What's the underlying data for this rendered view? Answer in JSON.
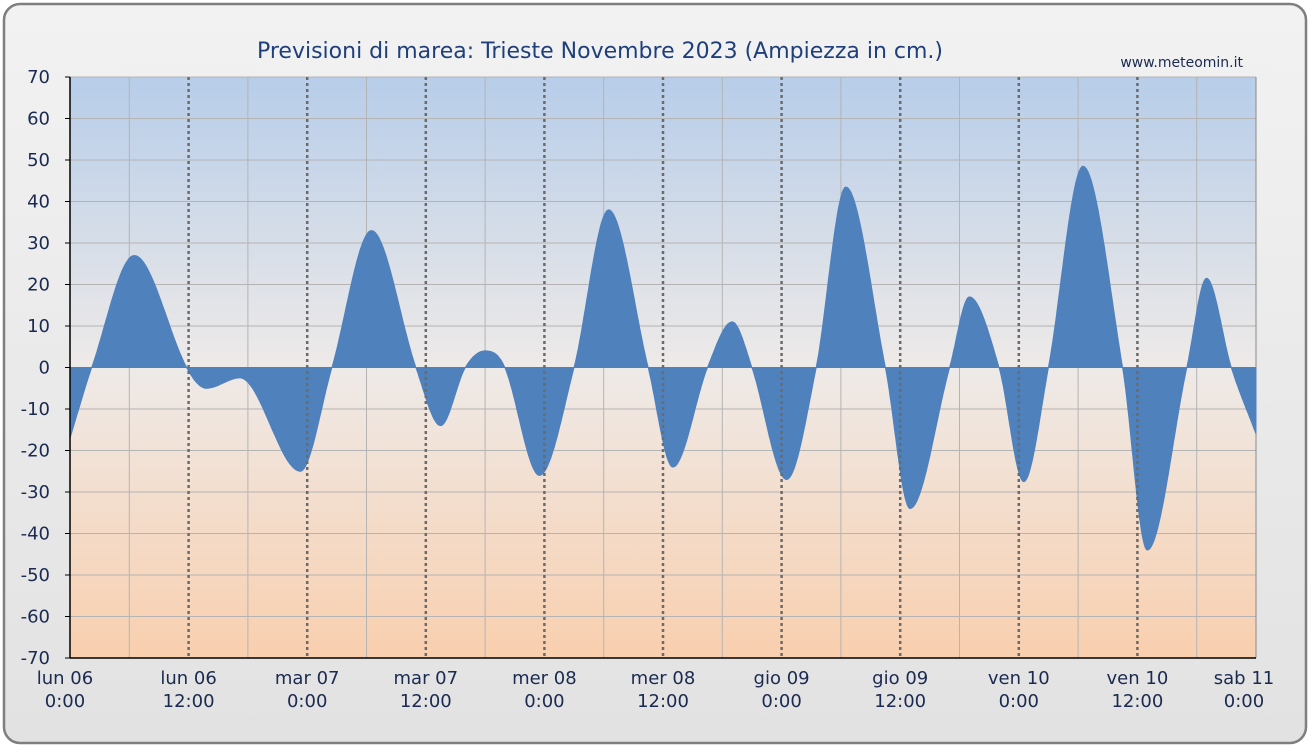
{
  "chart_data": {
    "type": "area",
    "title": "Previsioni di marea: Trieste Novembre 2023 (Ampiezza in cm.)",
    "credit": "www.meteomin.it",
    "xlabel": "",
    "ylabel": "",
    "ylim": [
      -70,
      70
    ],
    "y_ticks": [
      70,
      60,
      50,
      40,
      30,
      20,
      10,
      0,
      -10,
      -20,
      -30,
      -40,
      -50,
      -60,
      -70
    ],
    "x_range_hours": [
      0,
      120
    ],
    "x_ticks": [
      {
        "hour": 0,
        "line1": "lun   06",
        "line2": "0:00"
      },
      {
        "hour": 12,
        "line1": "lun   06",
        "line2": "12:00"
      },
      {
        "hour": 24,
        "line1": "mar   07",
        "line2": "0:00"
      },
      {
        "hour": 36,
        "line1": "mar   07",
        "line2": "12:00"
      },
      {
        "hour": 48,
        "line1": "mer   08",
        "line2": "0:00"
      },
      {
        "hour": 60,
        "line1": "mer   08",
        "line2": "12:00"
      },
      {
        "hour": 72,
        "line1": "gio   09",
        "line2": "0:00"
      },
      {
        "hour": 84,
        "line1": "gio   09",
        "line2": "12:00"
      },
      {
        "hour": 96,
        "line1": "ven   10",
        "line2": "0:00"
      },
      {
        "hour": 108,
        "line1": "ven   10",
        "line2": "12:00"
      },
      {
        "hour": 120,
        "line1": "sab   11",
        "line2": "0:00"
      }
    ],
    "grid": true,
    "legend": "none",
    "series": [
      {
        "color": "#4f81bd",
        "points": [
          {
            "x": 0,
            "y": -17
          },
          {
            "x": 2.2,
            "y": 0
          },
          {
            "x": 6.5,
            "y": 27
          },
          {
            "x": 11.8,
            "y": 0
          },
          {
            "x": 13.8,
            "y": -5
          },
          {
            "x": 17.2,
            "y": -2.5
          },
          {
            "x": 23.3,
            "y": -25
          },
          {
            "x": 26.5,
            "y": 0
          },
          {
            "x": 30.5,
            "y": 33
          },
          {
            "x": 35,
            "y": 0
          },
          {
            "x": 37.5,
            "y": -14
          },
          {
            "x": 40,
            "y": 0
          },
          {
            "x": 42,
            "y": 4
          },
          {
            "x": 44,
            "y": 0
          },
          {
            "x": 47.5,
            "y": -26
          },
          {
            "x": 51,
            "y": 0
          },
          {
            "x": 54.5,
            "y": 38
          },
          {
            "x": 58.5,
            "y": 0
          },
          {
            "x": 61,
            "y": -24
          },
          {
            "x": 64.5,
            "y": 0
          },
          {
            "x": 67,
            "y": 11
          },
          {
            "x": 69,
            "y": 0
          },
          {
            "x": 72.5,
            "y": -27
          },
          {
            "x": 75.5,
            "y": 0
          },
          {
            "x": 78.5,
            "y": 43.5
          },
          {
            "x": 82.5,
            "y": 0
          },
          {
            "x": 85,
            "y": -34
          },
          {
            "x": 89,
            "y": 0
          },
          {
            "x": 91,
            "y": 17
          },
          {
            "x": 94,
            "y": 0
          },
          {
            "x": 96.5,
            "y": -27.5
          },
          {
            "x": 99,
            "y": 0
          },
          {
            "x": 102.5,
            "y": 48.5
          },
          {
            "x": 106.5,
            "y": 0
          },
          {
            "x": 109,
            "y": -44
          },
          {
            "x": 113,
            "y": 0
          },
          {
            "x": 115,
            "y": 21.5
          },
          {
            "x": 117.5,
            "y": 0
          },
          {
            "x": 120,
            "y": -16
          }
        ]
      }
    ],
    "colors": {
      "area": "#4f81bd",
      "bg_top": "#b7cde9",
      "bg_mid": "#eeeae8",
      "bg_bottom": "#f9cfae",
      "text": "#1a2a50",
      "title": "#1f3f7a",
      "frame": "#7f7f7f"
    }
  }
}
